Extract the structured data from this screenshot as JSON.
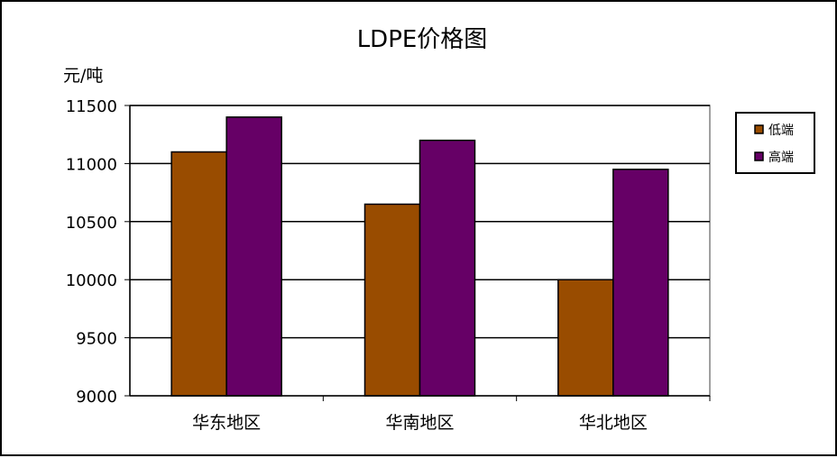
{
  "chart_data": {
    "type": "bar",
    "title": "LDPE价格图",
    "ylabel": "元/吨",
    "xlabel": "",
    "categories": [
      "华东地区",
      "华南地区",
      "华北地区"
    ],
    "series": [
      {
        "name": "低端",
        "values": [
          11100,
          10650,
          10000
        ],
        "color": "#994C00"
      },
      {
        "name": "高端",
        "values": [
          11400,
          11200,
          10950
        ],
        "color": "#660066"
      }
    ],
    "ylim": [
      9000,
      11500
    ],
    "yticks": [
      9000,
      9500,
      10000,
      10500,
      11000,
      11500
    ],
    "grid": true,
    "legend": "right"
  }
}
